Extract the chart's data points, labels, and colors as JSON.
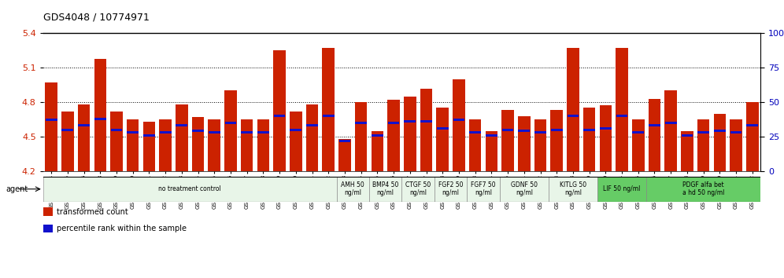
{
  "title": "GDS4048 / 10774971",
  "ylim_left": [
    4.2,
    5.4
  ],
  "ylim_right": [
    0,
    100
  ],
  "yticks_left": [
    4.2,
    4.5,
    4.8,
    5.1,
    5.4
  ],
  "ytick_labels_left": [
    "4.2",
    "4.5",
    "4.8",
    "5.1",
    "5.4"
  ],
  "yticks_right": [
    0,
    25,
    50,
    75,
    100
  ],
  "ytick_labels_right": [
    "0",
    "25",
    "50",
    "75",
    "100%"
  ],
  "bar_color": "#cc2200",
  "blue_color": "#1111cc",
  "categories": [
    "GSM509254",
    "GSM509255",
    "GSM509256",
    "GSM510028",
    "GSM510029",
    "GSM510030",
    "GSM510031",
    "GSM510032",
    "GSM510033",
    "GSM510034",
    "GSM510035",
    "GSM510036",
    "GSM510037",
    "GSM510038",
    "GSM510039",
    "GSM510040",
    "GSM510041",
    "GSM510042",
    "GSM510043",
    "GSM510044",
    "GSM510045",
    "GSM510046",
    "GSM510047",
    "GSM509257",
    "GSM509258",
    "GSM509259",
    "GSM510063",
    "GSM510064",
    "GSM510065",
    "GSM510051",
    "GSM510052",
    "GSM510053",
    "GSM510048",
    "GSM510049",
    "GSM510050",
    "GSM510054",
    "GSM510055",
    "GSM510056",
    "GSM510057",
    "GSM510058",
    "GSM510059",
    "GSM510060",
    "GSM510061",
    "GSM510062"
  ],
  "transformed_counts": [
    4.97,
    4.72,
    4.78,
    5.18,
    4.72,
    4.65,
    4.63,
    4.65,
    4.78,
    4.67,
    4.65,
    4.9,
    4.65,
    4.65,
    5.25,
    4.72,
    4.78,
    5.27,
    4.48,
    4.8,
    4.55,
    4.82,
    4.85,
    4.92,
    4.75,
    5.0,
    4.65,
    4.55,
    4.73,
    4.68,
    4.65,
    4.73,
    5.27,
    4.75,
    4.77,
    5.27,
    4.65,
    4.83,
    4.9,
    4.55,
    4.65,
    4.7,
    4.65,
    4.8
  ],
  "percentile_ranks": [
    37,
    30,
    33,
    38,
    30,
    28,
    26,
    28,
    33,
    29,
    28,
    35,
    28,
    28,
    40,
    30,
    33,
    40,
    22,
    35,
    26,
    35,
    36,
    36,
    31,
    37,
    28,
    26,
    30,
    29,
    28,
    30,
    40,
    30,
    31,
    40,
    28,
    33,
    35,
    26,
    28,
    29,
    28,
    33
  ],
  "agent_groups": [
    {
      "label": "no treatment control",
      "start": 0,
      "end": 18,
      "color": "#e8f5e8",
      "bright": false
    },
    {
      "label": "AMH 50\nng/ml",
      "start": 18,
      "end": 20,
      "color": "#e8f5e8",
      "bright": false
    },
    {
      "label": "BMP4 50\nng/ml",
      "start": 20,
      "end": 22,
      "color": "#e8f5e8",
      "bright": false
    },
    {
      "label": "CTGF 50\nng/ml",
      "start": 22,
      "end": 24,
      "color": "#e8f5e8",
      "bright": false
    },
    {
      "label": "FGF2 50\nng/ml",
      "start": 24,
      "end": 26,
      "color": "#e8f5e8",
      "bright": false
    },
    {
      "label": "FGF7 50\nng/ml",
      "start": 26,
      "end": 28,
      "color": "#e8f5e8",
      "bright": false
    },
    {
      "label": "GDNF 50\nng/ml",
      "start": 28,
      "end": 31,
      "color": "#e8f5e8",
      "bright": false
    },
    {
      "label": "KITLG 50\nng/ml",
      "start": 31,
      "end": 34,
      "color": "#e8f5e8",
      "bright": false
    },
    {
      "label": "LIF 50 ng/ml",
      "start": 34,
      "end": 37,
      "color": "#66cc66",
      "bright": true
    },
    {
      "label": "PDGF alfa bet\na hd 50 ng/ml",
      "start": 37,
      "end": 44,
      "color": "#66cc66",
      "bright": true
    }
  ],
  "legend_items": [
    {
      "color": "#cc2200",
      "label": "transformed count"
    },
    {
      "color": "#1111cc",
      "label": "percentile rank within the sample"
    }
  ]
}
